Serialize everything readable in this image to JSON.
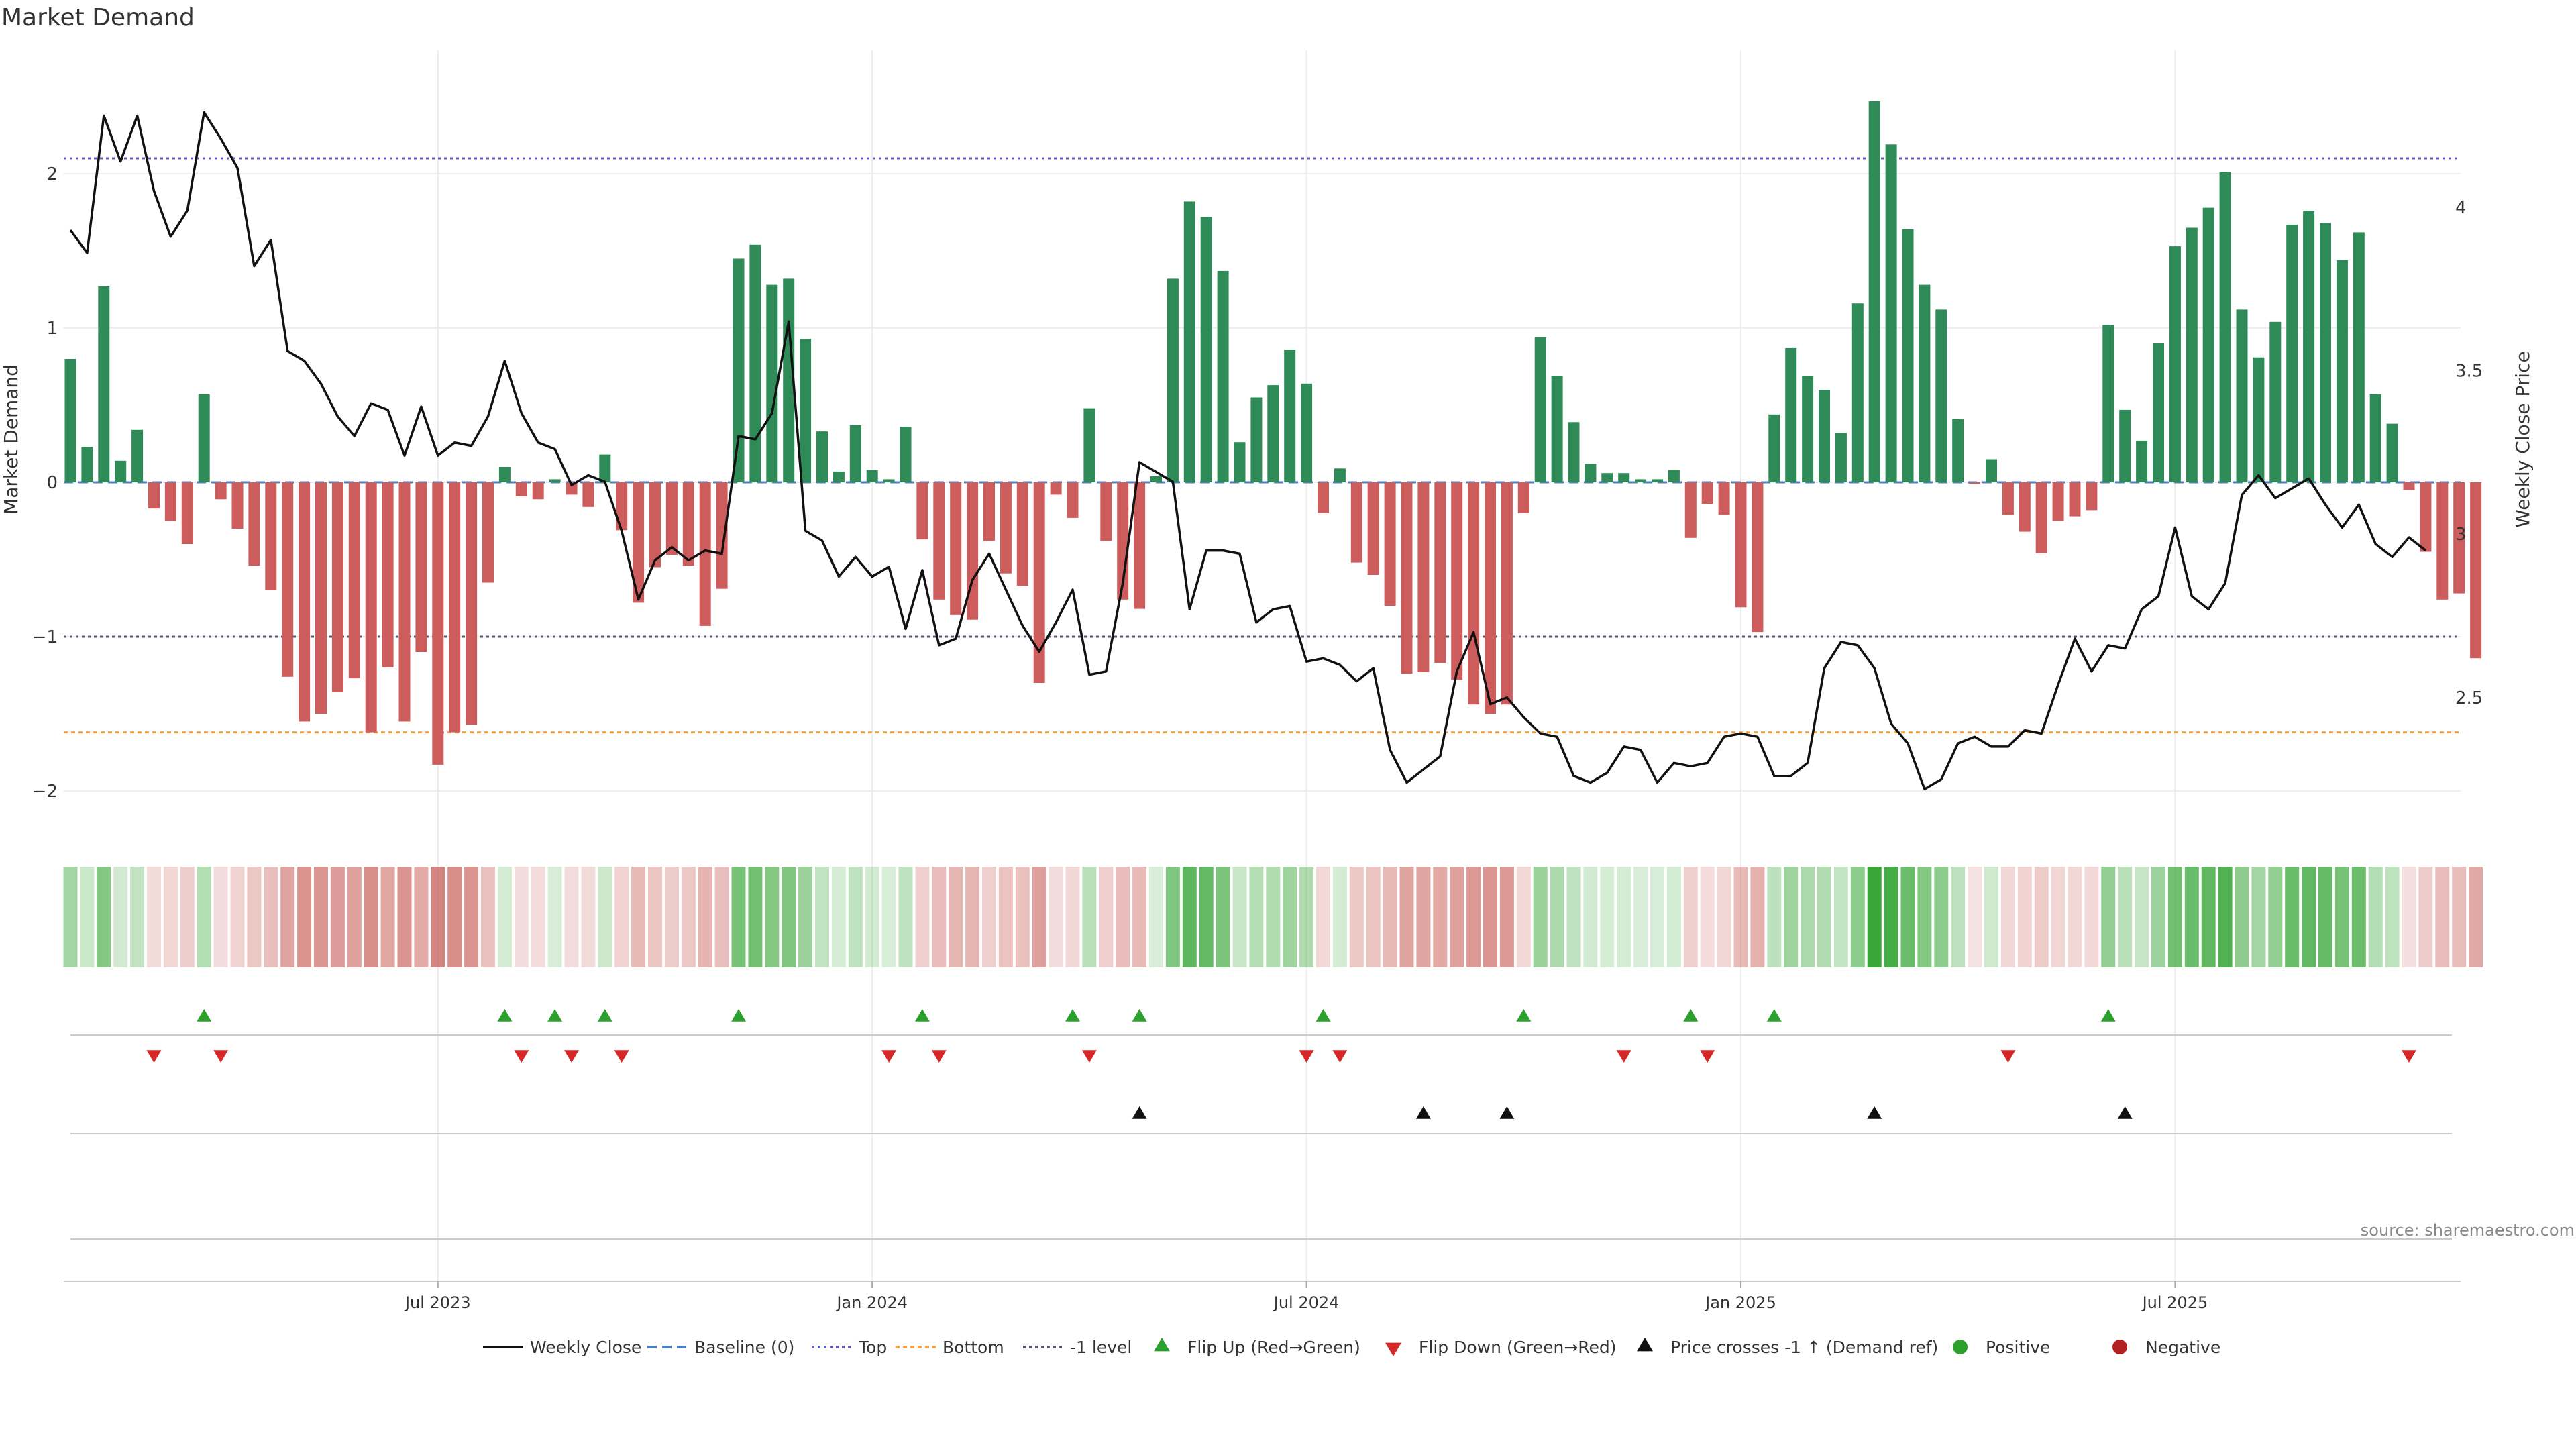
{
  "chart_data": {
    "type": "bar+line",
    "title": "Market Demand",
    "ylabel_left": "Market Demand",
    "ylabel_right": "Weekly Close Price",
    "source_note": "source: sharemaestro.com",
    "ylim_left": [
      -2.2,
      2.8
    ],
    "yticks_left": [
      {
        "v": 2,
        "label": "2"
      },
      {
        "v": 1,
        "label": "1"
      },
      {
        "v": 0,
        "label": "0"
      },
      {
        "v": -1,
        "label": "−1"
      },
      {
        "v": -2,
        "label": "−2"
      }
    ],
    "ylim_right": [
      2.12,
      4.48
    ],
    "yticks_right": [
      {
        "v": 4,
        "label": "4"
      },
      {
        "v": 3.5,
        "label": "3.5"
      },
      {
        "v": 3,
        "label": "3"
      },
      {
        "v": 2.5,
        "label": "2.5"
      }
    ],
    "xticks": [
      {
        "index": 22,
        "label": "Jul 2023"
      },
      {
        "index": 48,
        "label": "Jan 2024"
      },
      {
        "index": 74,
        "label": "Jul 2024"
      },
      {
        "index": 100,
        "label": "Jan 2025"
      },
      {
        "index": 126,
        "label": "Jul 2025"
      }
    ],
    "reference_lines": {
      "top": 2.1,
      "bottom": -1.62,
      "minus_one": -1.0,
      "baseline": 0
    },
    "demand": [
      0.8,
      0.23,
      1.27,
      0.14,
      0.34,
      -0.17,
      -0.25,
      -0.4,
      0.57,
      -0.11,
      -0.3,
      -0.54,
      -0.7,
      -1.26,
      -1.55,
      -1.5,
      -1.36,
      -1.27,
      -1.62,
      -1.2,
      -1.55,
      -1.1,
      -1.83,
      -1.62,
      -1.57,
      -0.65,
      0.1,
      -0.09,
      -0.11,
      0.02,
      -0.08,
      -0.16,
      0.18,
      -0.31,
      -0.78,
      -0.55,
      -0.47,
      -0.54,
      -0.93,
      -0.69,
      1.45,
      1.54,
      1.28,
      1.32,
      0.93,
      0.33,
      0.07,
      0.37,
      0.08,
      0.02,
      0.36,
      -0.37,
      -0.76,
      -0.86,
      -0.89,
      -0.38,
      -0.59,
      -0.67,
      -1.3,
      -0.08,
      -0.23,
      0.48,
      -0.38,
      -0.76,
      -0.82,
      0.04,
      1.32,
      1.82,
      1.72,
      1.37,
      0.26,
      0.55,
      0.63,
      0.86,
      0.64,
      -0.2,
      0.09,
      -0.52,
      -0.6,
      -0.8,
      -1.24,
      -1.23,
      -1.17,
      -1.28,
      -1.44,
      -1.5,
      -1.44,
      -0.2,
      0.94,
      0.69,
      0.39,
      0.12,
      0.06,
      0.06,
      0.02,
      0.02,
      0.08,
      -0.36,
      -0.14,
      -0.21,
      -0.81,
      -0.97,
      0.44,
      0.87,
      0.69,
      0.6,
      0.32,
      1.16,
      2.47,
      2.19,
      1.64,
      1.28,
      1.12,
      0.41,
      -0.01,
      0.15,
      -0.21,
      -0.32,
      -0.46,
      -0.25,
      -0.22,
      -0.18,
      1.02,
      0.47,
      0.27,
      0.9,
      1.53,
      1.65,
      1.78,
      2.01,
      1.12,
      0.81,
      1.04,
      1.67,
      1.76,
      1.68,
      1.44,
      1.62,
      0.57,
      0.38,
      -0.05,
      -0.45,
      -0.76,
      -0.72,
      -1.14
    ],
    "weekly_close": [
      3.93,
      3.86,
      4.28,
      4.14,
      4.28,
      4.05,
      3.91,
      3.99,
      4.29,
      4.21,
      4.12,
      3.82,
      3.9,
      3.56,
      3.53,
      3.46,
      3.36,
      3.3,
      3.4,
      3.38,
      3.24,
      3.39,
      3.24,
      3.28,
      3.27,
      3.36,
      3.53,
      3.37,
      3.28,
      3.26,
      3.15,
      3.18,
      3.16,
      3.01,
      2.8,
      2.92,
      2.96,
      2.92,
      2.95,
      2.94,
      3.3,
      3.29,
      3.37,
      3.65,
      3.01,
      2.98,
      2.87,
      2.93,
      2.87,
      2.9,
      2.71,
      2.89,
      2.66,
      2.68,
      2.86,
      2.94,
      2.83,
      2.72,
      2.64,
      2.73,
      2.83,
      2.57,
      2.58,
      2.85,
      3.22,
      3.19,
      3.16,
      2.77,
      2.95,
      2.95,
      2.94,
      2.73,
      2.77,
      2.78,
      2.61,
      2.62,
      2.6,
      2.55,
      2.59,
      2.34,
      2.24,
      2.28,
      2.32,
      2.58,
      2.7,
      2.48,
      2.5,
      2.44,
      2.39,
      2.38,
      2.26,
      2.24,
      2.27,
      2.35,
      2.34,
      2.24,
      2.3,
      2.29,
      2.3,
      2.38,
      2.39,
      2.38,
      2.26,
      2.26,
      2.3,
      2.59,
      2.67,
      2.66,
      2.59,
      2.42,
      2.36,
      2.22,
      2.25,
      2.36,
      2.38,
      2.35,
      2.35,
      2.4,
      2.39,
      2.54,
      2.68,
      2.58,
      2.66,
      2.65,
      2.77,
      2.81,
      3.02,
      2.81,
      2.77,
      2.85,
      3.12,
      3.18,
      3.11,
      3.14,
      3.17,
      3.09,
      3.02,
      3.09,
      2.97,
      2.93,
      2.99,
      2.95
    ],
    "flip_up_indices": [
      8,
      26,
      29,
      32,
      40,
      51,
      60,
      64,
      75,
      87,
      97,
      102,
      122
    ],
    "flip_down_indices": [
      5,
      9,
      27,
      30,
      33,
      49,
      52,
      61,
      74,
      76,
      93,
      98,
      116,
      140
    ],
    "price_cross_indices": [
      64,
      81,
      86,
      108,
      123
    ],
    "legend": [
      {
        "key": "weekly_close",
        "label": "Weekly Close"
      },
      {
        "key": "baseline",
        "label": "Baseline (0)"
      },
      {
        "key": "top",
        "label": "Top"
      },
      {
        "key": "bottom",
        "label": "Bottom"
      },
      {
        "key": "minus_one",
        "label": "-1 level"
      },
      {
        "key": "flip_up",
        "label": "Flip Up (Red→Green)"
      },
      {
        "key": "flip_down",
        "label": "Flip Down (Green→Red)"
      },
      {
        "key": "price_cross",
        "label": "Price crosses -1 ↑ (Demand ref)"
      },
      {
        "key": "positive",
        "label": "Positive"
      },
      {
        "key": "negative",
        "label": "Negative"
      }
    ],
    "colors": {
      "positive_bar": "#2e8b57",
      "negative_bar": "#cd5c5c",
      "line": "#111111",
      "top_line": "#5b5bbf",
      "bottom_line": "#f0a045",
      "minus_one_line": "#555577",
      "baseline": "#4a7fc1",
      "flip_up": "#2ca02c",
      "flip_down": "#d62728",
      "price_cross": "#111111",
      "positive_dot": "#2ca02c",
      "negative_dot": "#b22222",
      "heat_pos": "#2ca02c",
      "heat_neg": "#c8605a"
    }
  }
}
